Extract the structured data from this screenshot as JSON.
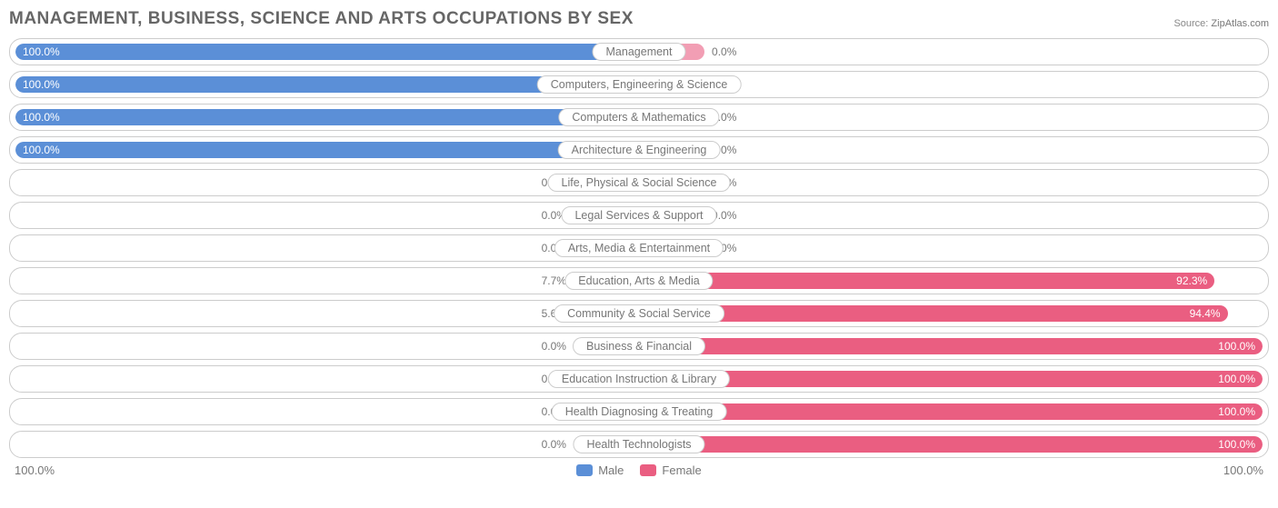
{
  "title": "MANAGEMENT, BUSINESS, SCIENCE AND ARTS OCCUPATIONS BY SEX",
  "source": {
    "label": "Source:",
    "value": "ZipAtlas.com"
  },
  "colors": {
    "male_fill": "#5b8fd7",
    "male_neutral": "#a5c1e8",
    "female_fill": "#ea5e81",
    "female_neutral": "#f29eb4",
    "text_muted": "#777777",
    "border": "#cccccc",
    "bg": "#ffffff"
  },
  "chart": {
    "type": "diverging-bar",
    "neutral_bar_pct": 10.5,
    "label_pill_min_width_pct": 18,
    "rows": [
      {
        "category": "Management",
        "male": 100.0,
        "female": 0.0
      },
      {
        "category": "Computers, Engineering & Science",
        "male": 100.0,
        "female": 0.0
      },
      {
        "category": "Computers & Mathematics",
        "male": 100.0,
        "female": 0.0
      },
      {
        "category": "Architecture & Engineering",
        "male": 100.0,
        "female": 0.0
      },
      {
        "category": "Life, Physical & Social Science",
        "male": 0.0,
        "female": 0.0
      },
      {
        "category": "Legal Services & Support",
        "male": 0.0,
        "female": 0.0
      },
      {
        "category": "Arts, Media & Entertainment",
        "male": 0.0,
        "female": 0.0
      },
      {
        "category": "Education, Arts & Media",
        "male": 7.7,
        "female": 92.3
      },
      {
        "category": "Community & Social Service",
        "male": 5.6,
        "female": 94.4
      },
      {
        "category": "Business & Financial",
        "male": 0.0,
        "female": 100.0
      },
      {
        "category": "Education Instruction & Library",
        "male": 0.0,
        "female": 100.0
      },
      {
        "category": "Health Diagnosing & Treating",
        "male": 0.0,
        "female": 100.0
      },
      {
        "category": "Health Technologists",
        "male": 0.0,
        "female": 100.0
      }
    ]
  },
  "axis": {
    "left": "100.0%",
    "right": "100.0%"
  },
  "legend": {
    "male": "Male",
    "female": "Female"
  }
}
